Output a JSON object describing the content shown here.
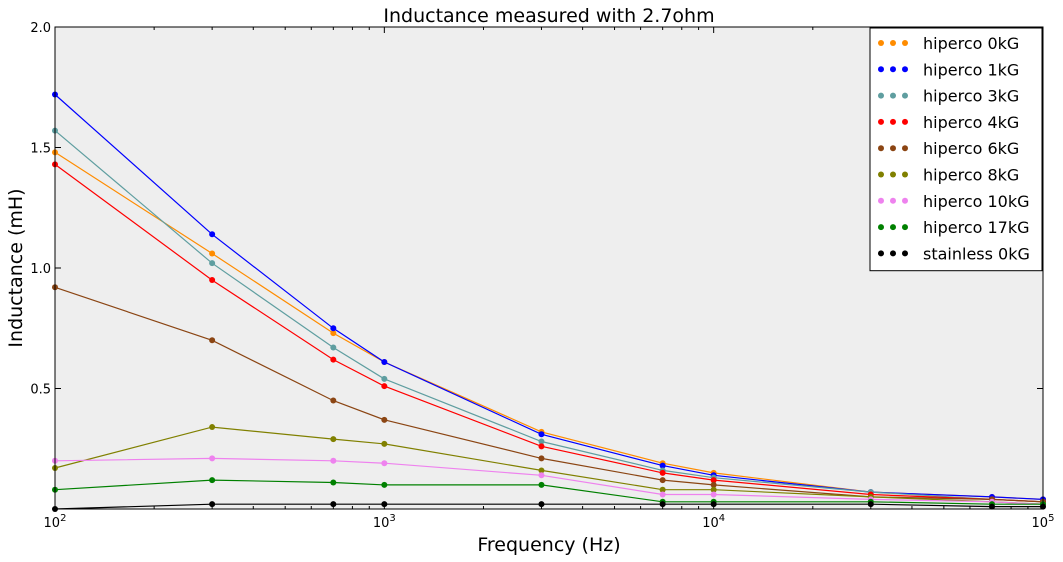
{
  "chart_data": {
    "type": "line",
    "title": "Inductance measured with 2.7ohm",
    "xlabel": "Frequency (Hz)",
    "ylabel": "Inductance (mH)",
    "xscale": "log",
    "xlim": [
      100,
      100000
    ],
    "ylim": [
      0.0,
      2.0
    ],
    "grid": false,
    "background": "#eeeeee",
    "legend_position": "top-right",
    "x_tick_labels": [
      {
        "value": 100,
        "base": "10",
        "exp": "2"
      },
      {
        "value": 1000,
        "base": "10",
        "exp": "3"
      },
      {
        "value": 10000,
        "base": "10",
        "exp": "4"
      },
      {
        "value": 100000,
        "base": "10",
        "exp": "5"
      }
    ],
    "y_tick_labels": [
      {
        "value": 0.5,
        "label": "0.5"
      },
      {
        "value": 1.0,
        "label": "1.0"
      },
      {
        "value": 1.5,
        "label": "1.5"
      },
      {
        "value": 2.0,
        "label": "2.0"
      }
    ],
    "x": [
      100,
      300,
      700,
      1000,
      3000,
      7000,
      10000,
      30000,
      70000,
      100000
    ],
    "series": [
      {
        "name": "hiperco 0kG",
        "color": "#ff8c00",
        "values": [
          1.48,
          1.06,
          0.73,
          0.61,
          0.32,
          0.19,
          0.15,
          0.07,
          0.05,
          0.04
        ]
      },
      {
        "name": "hiperco 1kG",
        "color": "#0000ff",
        "values": [
          1.72,
          1.14,
          0.75,
          0.61,
          0.31,
          0.18,
          0.14,
          0.07,
          0.05,
          0.04
        ]
      },
      {
        "name": "hiperco 3kG",
        "color": "#5f9ea0",
        "values": [
          1.57,
          1.02,
          0.67,
          0.54,
          0.28,
          0.16,
          0.13,
          0.07,
          0.04,
          0.03
        ]
      },
      {
        "name": "hiperco 4kG",
        "color": "#ff0000",
        "values": [
          1.43,
          0.95,
          0.62,
          0.51,
          0.26,
          0.15,
          0.12,
          0.06,
          0.04,
          0.03
        ]
      },
      {
        "name": "hiperco 6kG",
        "color": "#8b4513",
        "values": [
          0.92,
          0.7,
          0.45,
          0.37,
          0.21,
          0.12,
          0.1,
          0.05,
          0.04,
          0.03
        ]
      },
      {
        "name": "hiperco 8kG",
        "color": "#808000",
        "values": [
          0.17,
          0.34,
          0.29,
          0.27,
          0.16,
          0.08,
          0.08,
          0.05,
          0.03,
          0.02
        ]
      },
      {
        "name": "hiperco 10kG",
        "color": "#ee82ee",
        "values": [
          0.2,
          0.21,
          0.2,
          0.19,
          0.14,
          0.06,
          0.06,
          0.04,
          0.03,
          0.02
        ]
      },
      {
        "name": "hiperco 17kG",
        "color": "#008000",
        "values": [
          0.08,
          0.12,
          0.11,
          0.1,
          0.1,
          0.03,
          0.03,
          0.03,
          0.02,
          0.02
        ]
      },
      {
        "name": "stainless 0kG",
        "color": "#000000",
        "values": [
          0.0,
          0.02,
          0.02,
          0.02,
          0.02,
          0.02,
          0.02,
          0.02,
          0.01,
          0.01
        ]
      }
    ]
  }
}
